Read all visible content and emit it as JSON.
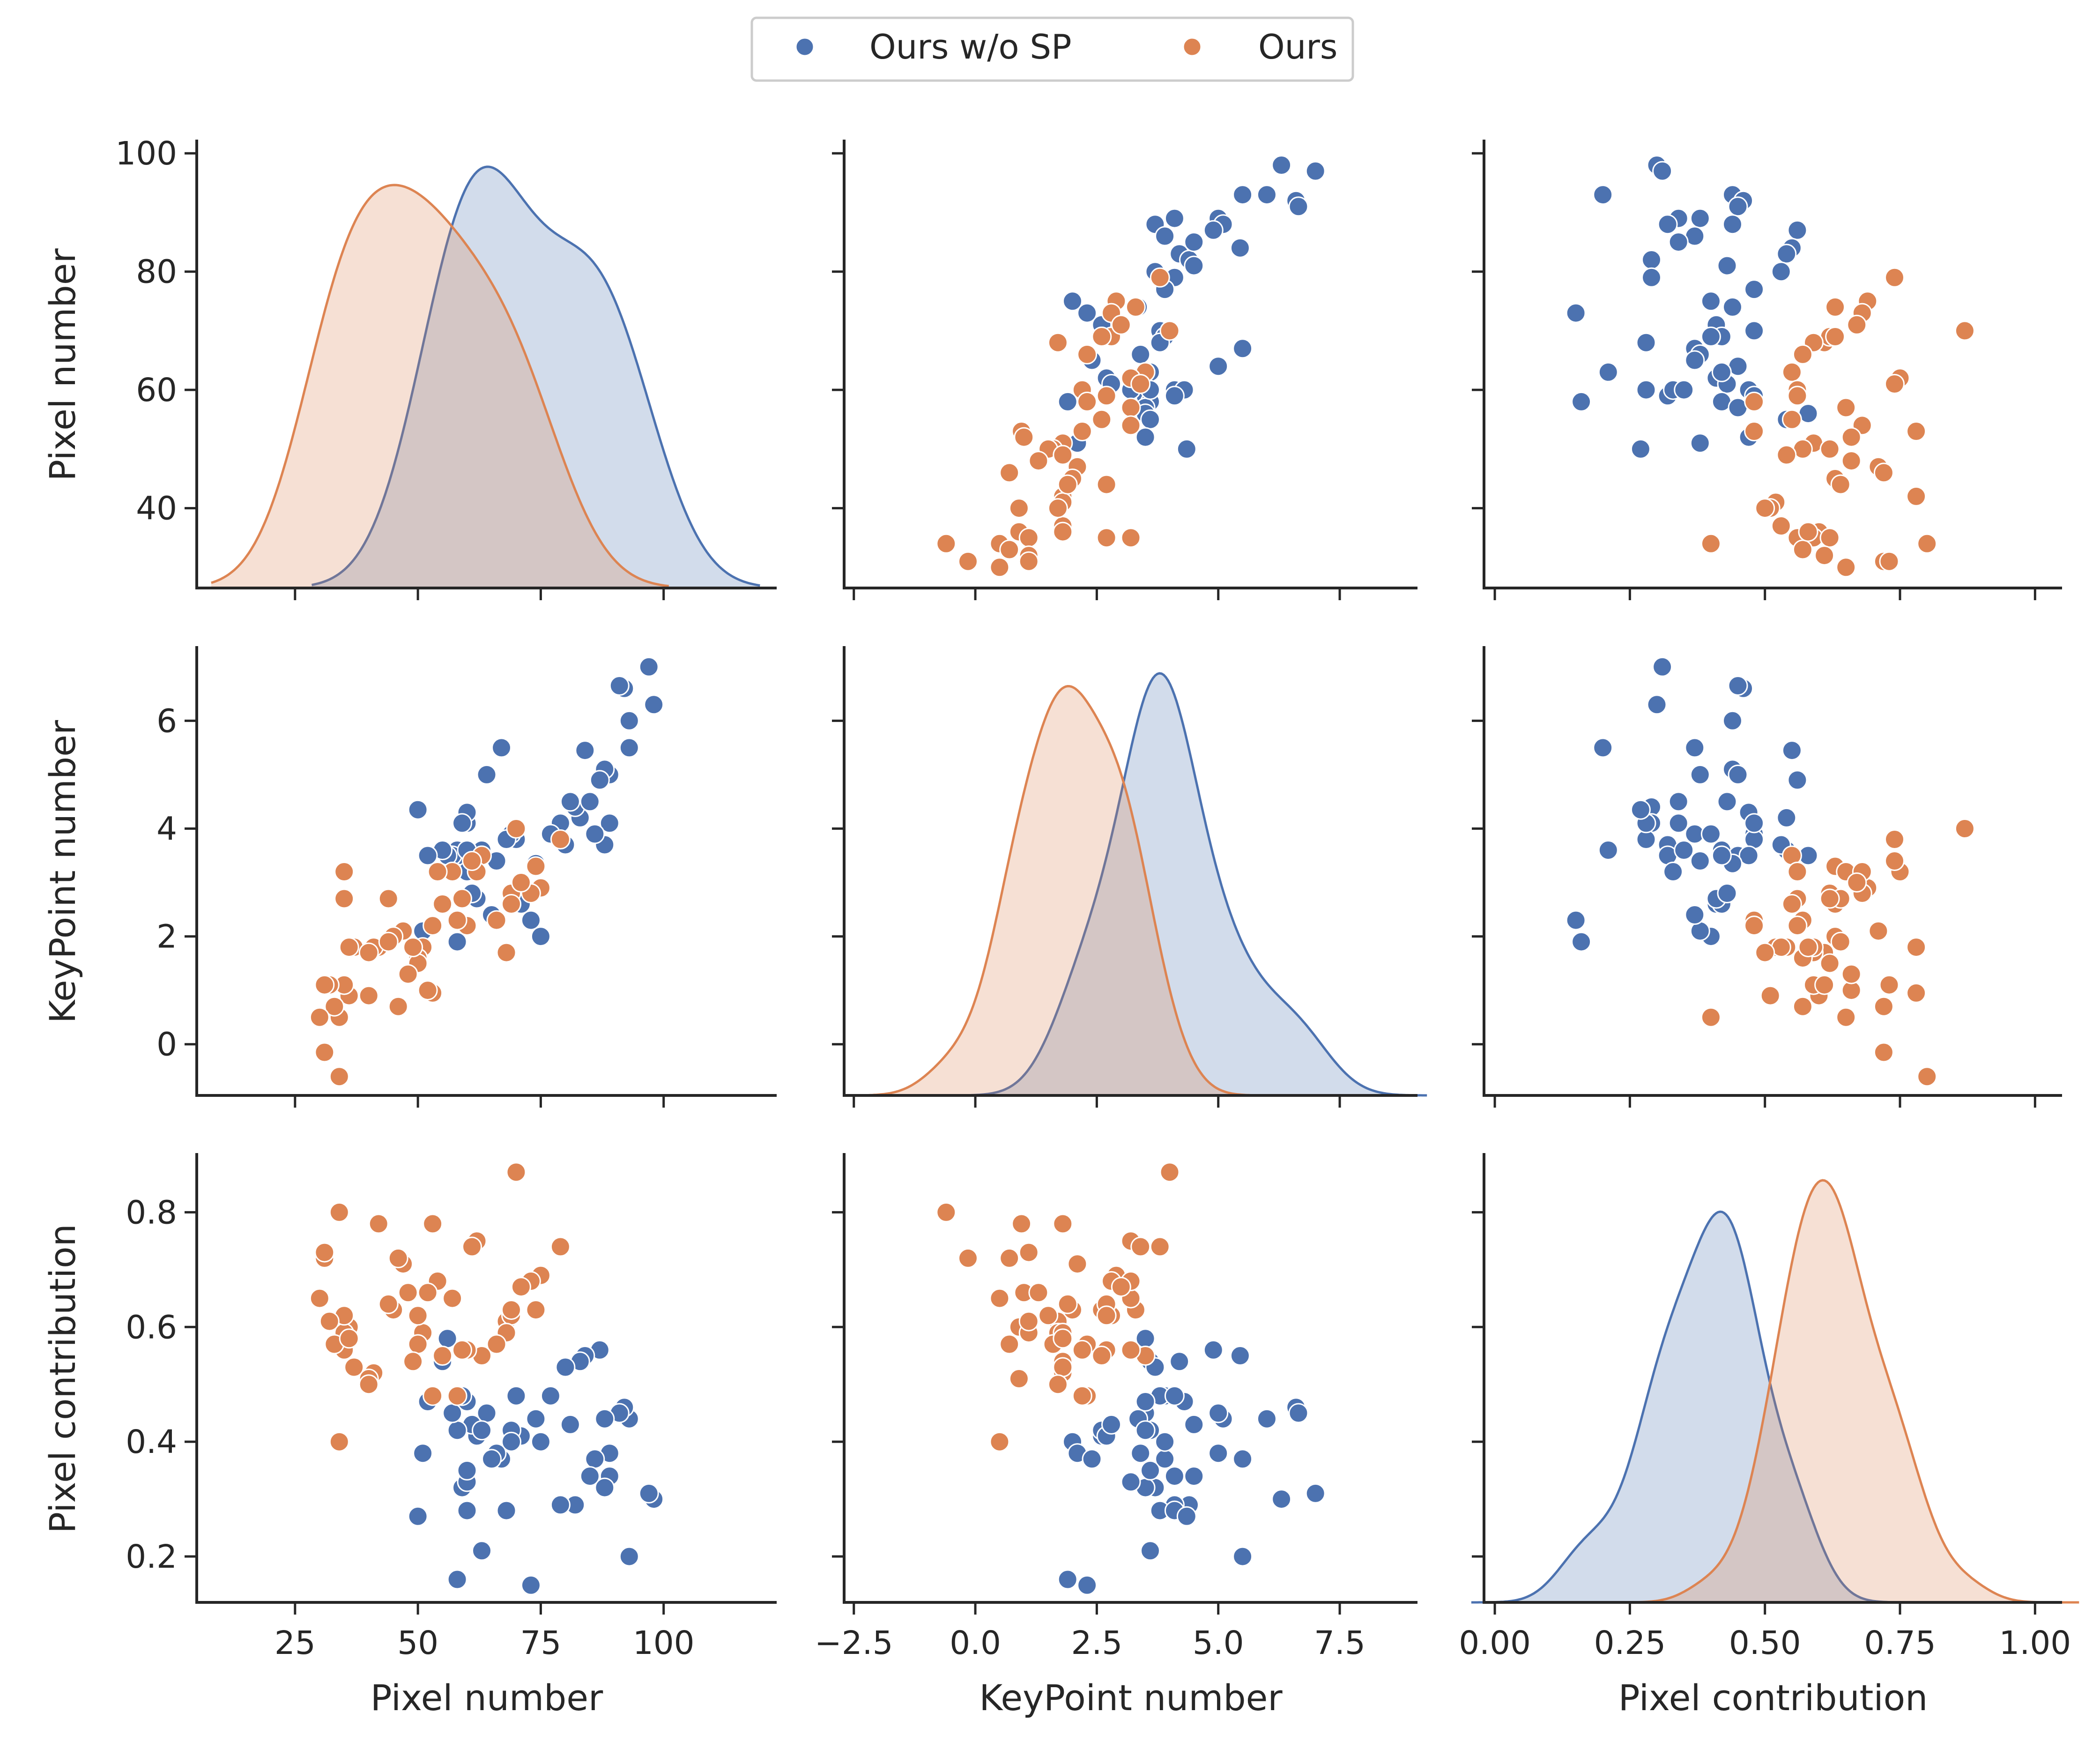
{
  "colors": {
    "ours_wo_sp": "#4c72b0",
    "ours": "#dd8452",
    "axis": "#262626",
    "legend_border": "#cccccc"
  },
  "legend": {
    "location": "top-center",
    "items": [
      {
        "name": "Ours w/o SP",
        "color": "#4c72b0"
      },
      {
        "name": "Ours",
        "color": "#dd8452"
      }
    ]
  },
  "chart_data": {
    "type": "pairplot",
    "variables": [
      "Pixel number",
      "KeyPoint number",
      "Pixel contribution"
    ],
    "axes": [
      {
        "label": "Pixel number",
        "xlim": [
          5,
          123
        ],
        "ylim": [
          26.5,
          102
        ],
        "xticks": [
          25,
          50,
          75,
          100
        ],
        "xtick_labels": [
          "25",
          "50",
          "75",
          "100"
        ],
        "yticks": [
          40,
          60,
          80,
          100
        ],
        "ytick_labels": [
          "40",
          "60",
          "80",
          "100"
        ]
      },
      {
        "label": "KeyPoint number",
        "xlim": [
          -2.7,
          9.1
        ],
        "ylim": [
          -0.95,
          7.35
        ],
        "xticks": [
          -2.5,
          0.0,
          2.5,
          5.0,
          7.5
        ],
        "xtick_labels": [
          "−2.5",
          "0.0",
          "2.5",
          "5.0",
          "7.5"
        ],
        "yticks": [
          0,
          2,
          4,
          6
        ],
        "ytick_labels": [
          "0",
          "2",
          "4",
          "6"
        ]
      },
      {
        "label": "Pixel contribution",
        "xlim": [
          -0.02,
          1.05
        ],
        "ylim": [
          0.12,
          0.9
        ],
        "xticks": [
          0.0,
          0.25,
          0.5,
          0.75,
          1.0
        ],
        "xtick_labels": [
          "0.00",
          "0.25",
          "0.50",
          "0.75",
          "1.00"
        ],
        "yticks": [
          0.2,
          0.4,
          0.6,
          0.8
        ],
        "ytick_labels": [
          "0.2",
          "0.4",
          "0.6",
          "0.8"
        ]
      }
    ],
    "series": [
      {
        "name": "Ours w/o SP",
        "color": "#4c72b0",
        "points": [
          [
            98,
            6.3,
            0.3
          ],
          [
            97,
            7.0,
            0.31
          ],
          [
            93,
            5.5,
            0.2
          ],
          [
            93,
            6.0,
            0.44
          ],
          [
            92,
            6.6,
            0.46
          ],
          [
            91,
            6.65,
            0.45
          ],
          [
            89,
            4.1,
            0.34
          ],
          [
            89,
            5.0,
            0.38
          ],
          [
            88,
            5.1,
            0.44
          ],
          [
            88,
            3.7,
            0.32
          ],
          [
            87,
            4.9,
            0.56
          ],
          [
            86,
            3.9,
            0.37
          ],
          [
            84,
            5.45,
            0.55
          ],
          [
            83,
            4.2,
            0.54
          ],
          [
            82,
            4.4,
            0.29
          ],
          [
            81,
            4.5,
            0.43
          ],
          [
            79,
            4.1,
            0.29
          ],
          [
            77,
            3.9,
            0.48
          ],
          [
            75,
            2.0,
            0.4
          ],
          [
            73,
            2.3,
            0.15
          ],
          [
            71,
            2.6,
            0.41
          ],
          [
            70,
            3.8,
            0.48
          ],
          [
            69,
            2.6,
            0.42
          ],
          [
            69,
            3.9,
            0.4
          ],
          [
            68,
            3.8,
            0.28
          ],
          [
            67,
            5.5,
            0.37
          ],
          [
            66,
            3.4,
            0.38
          ],
          [
            64,
            5.0,
            0.45
          ],
          [
            63,
            3.6,
            0.21
          ],
          [
            62,
            2.7,
            0.41
          ],
          [
            61,
            2.8,
            0.43
          ],
          [
            60,
            4.1,
            0.28
          ],
          [
            60,
            4.3,
            0.47
          ],
          [
            59,
            4.1,
            0.48
          ],
          [
            59,
            3.5,
            0.32
          ],
          [
            58,
            3.6,
            0.42
          ],
          [
            58,
            1.9,
            0.16
          ],
          [
            57,
            3.5,
            0.45
          ],
          [
            56,
            3.5,
            0.58
          ],
          [
            55,
            3.6,
            0.54
          ],
          [
            52,
            3.5,
            0.47
          ],
          [
            51,
            2.1,
            0.38
          ],
          [
            50,
            4.35,
            0.27
          ],
          [
            60,
            3.2,
            0.33
          ],
          [
            65,
            2.4,
            0.37
          ],
          [
            74,
            3.35,
            0.44
          ],
          [
            80,
            3.7,
            0.53
          ],
          [
            63,
            3.5,
            0.42
          ],
          [
            85,
            4.5,
            0.34
          ],
          [
            60,
            3.6,
            0.35
          ]
        ]
      },
      {
        "name": "Ours",
        "color": "#dd8452",
        "points": [
          [
            79,
            3.8,
            0.74
          ],
          [
            75,
            2.9,
            0.69
          ],
          [
            74,
            3.3,
            0.63
          ],
          [
            73,
            2.8,
            0.68
          ],
          [
            70,
            4.0,
            0.87
          ],
          [
            68,
            1.7,
            0.61
          ],
          [
            69,
            2.8,
            0.62
          ],
          [
            69,
            2.6,
            0.63
          ],
          [
            68,
            1.7,
            0.59
          ],
          [
            66,
            2.3,
            0.57
          ],
          [
            63,
            3.5,
            0.55
          ],
          [
            62,
            3.2,
            0.75
          ],
          [
            61,
            3.4,
            0.74
          ],
          [
            60,
            2.2,
            0.56
          ],
          [
            59,
            2.7,
            0.56
          ],
          [
            58,
            2.3,
            0.48
          ],
          [
            57,
            3.2,
            0.65
          ],
          [
            55,
            2.6,
            0.55
          ],
          [
            54,
            3.2,
            0.68
          ],
          [
            53,
            0.95,
            0.78
          ],
          [
            52,
            1.0,
            0.66
          ],
          [
            51,
            1.8,
            0.59
          ],
          [
            50,
            1.6,
            0.57
          ],
          [
            50,
            1.5,
            0.62
          ],
          [
            49,
            1.8,
            0.54
          ],
          [
            48,
            1.3,
            0.66
          ],
          [
            47,
            2.1,
            0.71
          ],
          [
            46,
            0.7,
            0.72
          ],
          [
            45,
            2.0,
            0.63
          ],
          [
            44,
            2.7,
            0.64
          ],
          [
            42,
            1.8,
            0.78
          ],
          [
            41,
            1.8,
            0.52
          ],
          [
            40,
            0.9,
            0.51
          ],
          [
            37,
            1.8,
            0.53
          ],
          [
            36,
            0.9,
            0.6
          ],
          [
            35,
            1.1,
            0.59
          ],
          [
            35,
            2.7,
            0.62
          ],
          [
            35,
            3.2,
            0.56
          ],
          [
            34,
            0.5,
            0.4
          ],
          [
            34,
            -0.6,
            0.8
          ],
          [
            33,
            0.7,
            0.57
          ],
          [
            32,
            1.1,
            0.61
          ],
          [
            31,
            -0.15,
            0.72
          ],
          [
            31,
            1.1,
            0.73
          ],
          [
            30,
            0.5,
            0.65
          ],
          [
            36,
            1.8,
            0.58
          ],
          [
            44,
            1.9,
            0.64
          ],
          [
            53,
            2.2,
            0.48
          ],
          [
            40,
            1.7,
            0.5
          ],
          [
            71,
            3.0,
            0.67
          ]
        ]
      }
    ],
    "kde_bandwidth_factor": [
      1.35,
      1.1,
      1.0
    ]
  }
}
